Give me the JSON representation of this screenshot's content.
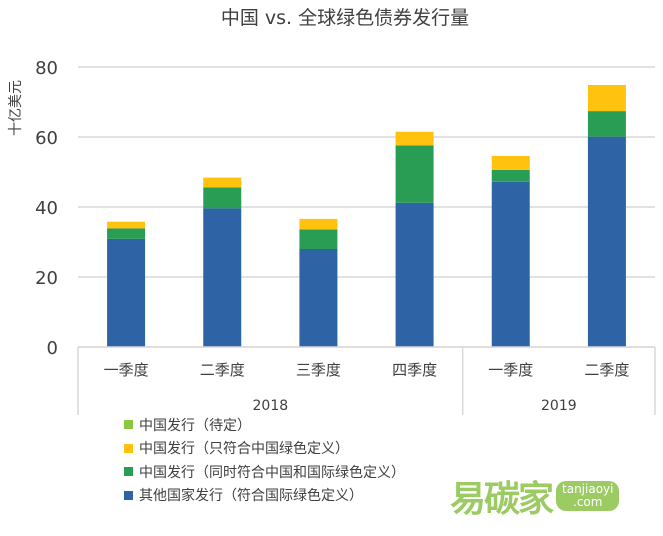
{
  "chart_data": {
    "type": "bar",
    "stacked": true,
    "title": "中国 vs. 全球绿色债券发行量",
    "ylabel": "十亿美元",
    "xlabel": "",
    "ylim": [
      0,
      80
    ],
    "yticks": [
      0,
      20,
      40,
      60,
      80
    ],
    "grid": true,
    "categories": [
      "一季度",
      "二季度",
      "三季度",
      "四季度",
      "一季度",
      "二季度"
    ],
    "groups": [
      {
        "label": "2018",
        "span": 4
      },
      {
        "label": "2019",
        "span": 2
      }
    ],
    "legend_position": "bottom-left",
    "series": [
      {
        "name": "其他国家发行（符合国际绿色定义）",
        "color": "#2e63a5",
        "values": [
          30.9,
          39.6,
          28.0,
          41.2,
          47.2,
          60.1
        ]
      },
      {
        "name": "中国发行（同时符合中国和国际绿色定义）",
        "color": "#2a9d55",
        "values": [
          3.0,
          6.0,
          5.6,
          16.4,
          3.4,
          7.3
        ]
      },
      {
        "name": "中国发行（只符合中国绿色定义）",
        "color": "#ffc20e",
        "values": [
          1.9,
          2.8,
          3.0,
          3.9,
          4.0,
          7.2
        ]
      },
      {
        "name": "中国发行（待定）",
        "color": "#8dc63f",
        "values": [
          0,
          0,
          0,
          0,
          0,
          0.2
        ]
      }
    ]
  },
  "logo": {
    "text": "易碳家",
    "sub1": "tanjiaoyi",
    "sub2": ".com"
  }
}
